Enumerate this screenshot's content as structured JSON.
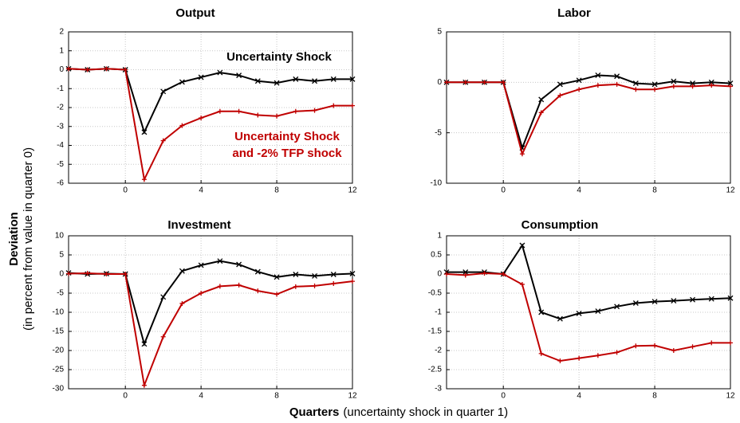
{
  "chart_data": [
    {
      "type": "line",
      "title": "Output",
      "x": [
        -3,
        -2,
        -1,
        0,
        1,
        2,
        3,
        4,
        5,
        6,
        7,
        8,
        9,
        10,
        11,
        12
      ],
      "xlim": [
        -3,
        12
      ],
      "xticks": [
        0,
        4,
        8,
        12
      ],
      "ylim": [
        -6,
        2
      ],
      "yticks": [
        -6,
        -5,
        -4,
        -3,
        -2,
        -1,
        0,
        1,
        2
      ],
      "grid": true,
      "series": [
        {
          "color": "#000000",
          "marker": "x",
          "values": [
            0.05,
            0,
            0.05,
            0,
            -3.3,
            -1.15,
            -0.65,
            -0.4,
            -0.15,
            -0.3,
            -0.6,
            -0.7,
            -0.5,
            -0.6,
            -0.5,
            -0.5
          ]
        },
        {
          "color": "#c00000",
          "marker": "+",
          "values": [
            0.05,
            0,
            0.05,
            0,
            -5.8,
            -3.75,
            -2.95,
            -2.55,
            -2.2,
            -2.2,
            -2.4,
            -2.45,
            -2.2,
            -2.15,
            -1.9,
            -1.9
          ]
        }
      ],
      "annotations": [
        {
          "text": "Uncertainty Shock",
          "color": "#000000"
        },
        {
          "text": "Uncertainty Shock",
          "color": "#c00000"
        },
        {
          "text": "and -2% TFP shock",
          "color": "#c00000"
        }
      ]
    },
    {
      "type": "line",
      "title": "Labor",
      "x": [
        -3,
        -2,
        -1,
        0,
        1,
        2,
        3,
        4,
        5,
        6,
        7,
        8,
        9,
        10,
        11,
        12
      ],
      "xlim": [
        -3,
        12
      ],
      "xticks": [
        0,
        4,
        8,
        12
      ],
      "ylim": [
        -10,
        5
      ],
      "yticks": [
        -10,
        -5,
        0,
        5
      ],
      "grid": true,
      "series": [
        {
          "color": "#000000",
          "marker": "x",
          "values": [
            0,
            0,
            0,
            0,
            -6.5,
            -1.7,
            -0.2,
            0.2,
            0.7,
            0.6,
            -0.1,
            -0.2,
            0.1,
            -0.1,
            0,
            -0.1
          ]
        },
        {
          "color": "#c00000",
          "marker": "+",
          "values": [
            0,
            0,
            0,
            0,
            -7.1,
            -3,
            -1.3,
            -0.7,
            -0.3,
            -0.2,
            -0.7,
            -0.7,
            -0.4,
            -0.4,
            -0.3,
            -0.4
          ]
        }
      ]
    },
    {
      "type": "line",
      "title": "Investment",
      "x": [
        -3,
        -2,
        -1,
        0,
        1,
        2,
        3,
        4,
        5,
        6,
        7,
        8,
        9,
        10,
        11,
        12
      ],
      "xlim": [
        -3,
        12
      ],
      "xticks": [
        0,
        4,
        8,
        12
      ],
      "ylim": [
        -30,
        10
      ],
      "yticks": [
        -30,
        -25,
        -20,
        -15,
        -10,
        -5,
        0,
        5,
        10
      ],
      "grid": true,
      "series": [
        {
          "color": "#000000",
          "marker": "x",
          "values": [
            0.3,
            0,
            0.1,
            0,
            -18.3,
            -6,
            0.8,
            2.3,
            3.4,
            2.5,
            0.6,
            -0.8,
            -0.1,
            -0.5,
            -0.1,
            0.1
          ]
        },
        {
          "color": "#c00000",
          "marker": "+",
          "values": [
            0.1,
            0.2,
            0,
            0,
            -29.1,
            -16.4,
            -7.7,
            -5,
            -3.2,
            -2.9,
            -4.4,
            -5.3,
            -3.3,
            -3.1,
            -2.5,
            -1.9
          ]
        }
      ]
    },
    {
      "type": "line",
      "title": "Consumption",
      "x": [
        -3,
        -2,
        -1,
        0,
        1,
        2,
        3,
        4,
        5,
        6,
        7,
        8,
        9,
        10,
        11,
        12
      ],
      "xlim": [
        -3,
        12
      ],
      "xticks": [
        0,
        4,
        8,
        12
      ],
      "ylim": [
        -3,
        1
      ],
      "yticks": [
        -3,
        -2.5,
        -2,
        -1.5,
        -1,
        -0.5,
        0,
        0.5,
        1
      ],
      "grid": true,
      "series": [
        {
          "color": "#000000",
          "marker": "x",
          "values": [
            0.05,
            0.05,
            0.05,
            0,
            0.75,
            -1,
            -1.17,
            -1.03,
            -0.97,
            -0.85,
            -0.76,
            -0.72,
            -0.7,
            -0.67,
            -0.65,
            -0.63
          ]
        },
        {
          "color": "#c00000",
          "marker": "+",
          "values": [
            0,
            -0.03,
            0.02,
            0,
            -0.27,
            -2.08,
            -2.27,
            -2.2,
            -2.13,
            -2.05,
            -1.88,
            -1.87,
            -2,
            -1.9,
            -1.8,
            -1.8
          ]
        }
      ]
    }
  ],
  "ylabel": {
    "main": "Deviation",
    "sub": "(in percent from value in quarter 0)"
  },
  "xlabel": {
    "main": "Quarters",
    "sub": "(uncertainty shock in quarter 1)"
  }
}
